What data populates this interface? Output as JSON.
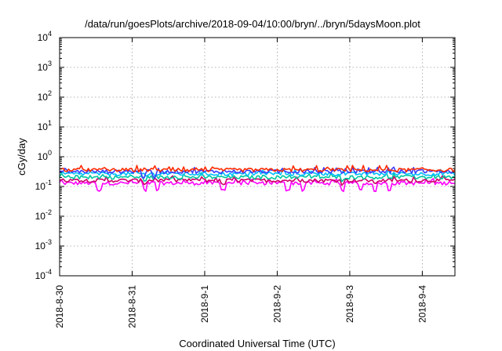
{
  "chart_data": {
    "type": "line",
    "title": "/data/run/goesPlots/archive/2018-09-04/10:00/bryn/../bryn/5daysMoon.plot",
    "xlabel": "Coordinated Universal Time (UTC)",
    "ylabel": "cGy/day",
    "yscale": "log",
    "ylim": [
      0.0001,
      10000
    ],
    "xlim": [
      0,
      5.45
    ],
    "grid": true,
    "y_ticks": [
      {
        "base": "10",
        "exp": "-4",
        "value": 0.0001
      },
      {
        "base": "10",
        "exp": "-3",
        "value": 0.001
      },
      {
        "base": "10",
        "exp": "-2",
        "value": 0.01
      },
      {
        "base": "10",
        "exp": "-1",
        "value": 0.1
      },
      {
        "base": "10",
        "exp": "0",
        "value": 1
      },
      {
        "base": "10",
        "exp": "1",
        "value": 10
      },
      {
        "base": "10",
        "exp": "2",
        "value": 100
      },
      {
        "base": "10",
        "exp": "3",
        "value": 1000
      },
      {
        "base": "10",
        "exp": "4",
        "value": 10000
      }
    ],
    "x_ticks": [
      {
        "label": "2018-8-30",
        "value": 0
      },
      {
        "label": "2018-8-31",
        "value": 1
      },
      {
        "label": "2018-9-1",
        "value": 2
      },
      {
        "label": "2018-9-2",
        "value": 3
      },
      {
        "label": "2018-9-3",
        "value": 4
      },
      {
        "label": "2018-9-4",
        "value": 5
      }
    ],
    "series": [
      {
        "color": "#ff00ff",
        "base": 0.13,
        "dips": [
          0.55,
          1.18,
          1.35,
          2.25,
          3.15,
          3.35,
          3.9,
          4.15,
          4.35,
          4.55
        ],
        "dip_to": 0.075
      },
      {
        "color": "#cc0066",
        "base": 0.16,
        "dips": [
          1.18,
          2.25,
          3.9,
          4.35
        ],
        "dip_to": 0.12
      },
      {
        "color": "#00c8a0",
        "base": 0.205,
        "dips": [
          1.18,
          3.9
        ],
        "dip_to": 0.16
      },
      {
        "color": "#00bfff",
        "base": 0.265,
        "dips": [
          1.2
        ],
        "dip_to": 0.22
      },
      {
        "color": "#3a3aff",
        "base": 0.32,
        "dips": [
          1.15,
          1.3
        ],
        "dip_to": 0.2
      },
      {
        "color": "#ff2a00",
        "base": 0.36,
        "dips": [],
        "dip_to": 0.3
      }
    ]
  }
}
